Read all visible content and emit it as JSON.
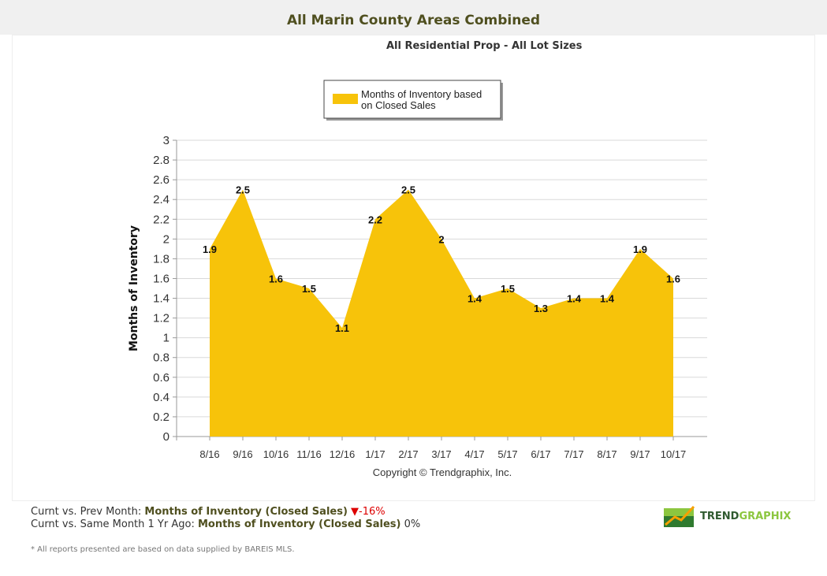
{
  "header": {
    "title": "All Marin County Areas Combined"
  },
  "chart_data": {
    "type": "area",
    "title": "All Residential Prop - All Lot Sizes",
    "xlabel": "",
    "ylabel": "Months of Inventory",
    "ylim": [
      0,
      3
    ],
    "yticks": [
      "0",
      "0.2",
      "0.4",
      "0.6",
      "0.8",
      "1",
      "1.2",
      "1.4",
      "1.6",
      "1.8",
      "2",
      "2.2",
      "2.4",
      "2.6",
      "2.8",
      "3"
    ],
    "grid": true,
    "legend_position": "top-center",
    "categories": [
      "8/16",
      "9/16",
      "10/16",
      "11/16",
      "12/16",
      "1/17",
      "2/17",
      "3/17",
      "4/17",
      "5/17",
      "6/17",
      "7/17",
      "8/17",
      "9/17",
      "10/17"
    ],
    "series": [
      {
        "name": "Months of Inventory based on Closed Sales",
        "color": "#f7c30a",
        "values": [
          1.9,
          2.5,
          1.6,
          1.5,
          1.1,
          2.2,
          2.5,
          2,
          1.4,
          1.5,
          1.3,
          1.4,
          1.4,
          1.9,
          1.6
        ]
      }
    ],
    "legend_lines": [
      "Months of Inventory based",
      "on Closed Sales"
    ],
    "copyright": "Copyright © Trendgraphix, Inc."
  },
  "stats": {
    "row1": {
      "prefix": "Curnt vs. Prev Month: ",
      "metric": "Months of Inventory (Closed Sales)",
      "change": "-16%",
      "direction": "down",
      "color": "#dd0000"
    },
    "row2": {
      "prefix": "Curnt vs. Same Month 1 Yr Ago: ",
      "metric": "Months of Inventory (Closed Sales)",
      "change": "0%"
    }
  },
  "footnote": "* All reports presented are based on data supplied by BAREIS MLS.",
  "logo": {
    "text_dark": "TREND",
    "text_light": "GRAPHIX"
  }
}
